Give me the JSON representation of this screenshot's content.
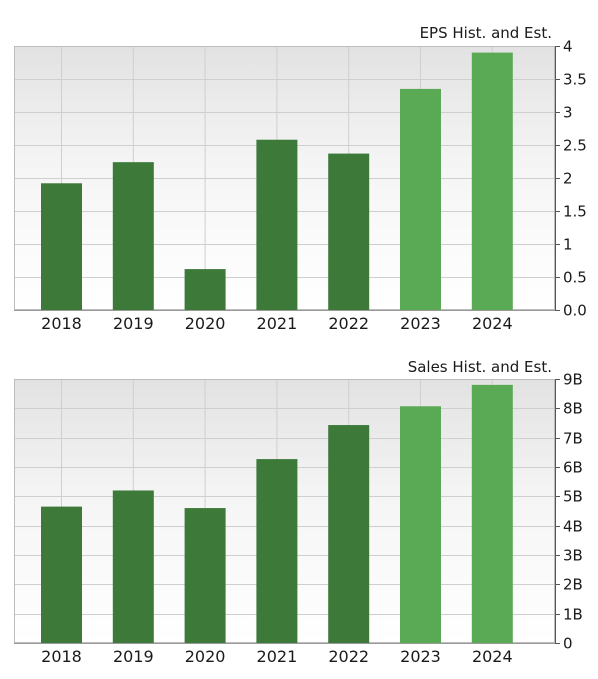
{
  "chart_data": [
    {
      "type": "bar",
      "title": "EPS Hist. and Est.",
      "categories": [
        "2018",
        "2019",
        "2020",
        "2021",
        "2022",
        "2023",
        "2024"
      ],
      "values": [
        1.92,
        2.24,
        0.62,
        2.58,
        2.37,
        3.35,
        3.9
      ],
      "estimate": [
        false,
        false,
        false,
        false,
        false,
        true,
        true
      ],
      "ylim": [
        0,
        4
      ],
      "yticks": [
        {
          "value": 4,
          "label": "4"
        },
        {
          "value": 3.5,
          "label": "3.5"
        },
        {
          "value": 3,
          "label": "3"
        },
        {
          "value": 2.5,
          "label": "2.5"
        },
        {
          "value": 2,
          "label": "2"
        },
        {
          "value": 1.5,
          "label": "1.5"
        },
        {
          "value": 1,
          "label": "1"
        },
        {
          "value": 0.5,
          "label": "0.5"
        },
        {
          "value": 0,
          "label": "0.0"
        }
      ],
      "y_axis_position": "right",
      "grid": true,
      "colors": {
        "historical": "#3d7a3a",
        "estimate": "#5aa955"
      }
    },
    {
      "type": "bar",
      "title": "Sales Hist. and Est.",
      "categories": [
        "2018",
        "2019",
        "2020",
        "2021",
        "2022",
        "2023",
        "2024"
      ],
      "values": [
        4.65,
        5.2,
        4.6,
        6.27,
        7.43,
        8.07,
        8.8
      ],
      "estimate": [
        false,
        false,
        false,
        false,
        false,
        true,
        true
      ],
      "ylim": [
        0,
        9
      ],
      "yticks": [
        {
          "value": 9,
          "label": "9B"
        },
        {
          "value": 8,
          "label": "8B"
        },
        {
          "value": 7,
          "label": "7B"
        },
        {
          "value": 6,
          "label": "6B"
        },
        {
          "value": 5,
          "label": "5B"
        },
        {
          "value": 4,
          "label": "4B"
        },
        {
          "value": 3,
          "label": "3B"
        },
        {
          "value": 2,
          "label": "2B"
        },
        {
          "value": 1,
          "label": "1B"
        },
        {
          "value": 0,
          "label": "0"
        }
      ],
      "y_axis_position": "right",
      "grid": true,
      "colors": {
        "historical": "#3d7a3a",
        "estimate": "#5aa955"
      }
    }
  ]
}
